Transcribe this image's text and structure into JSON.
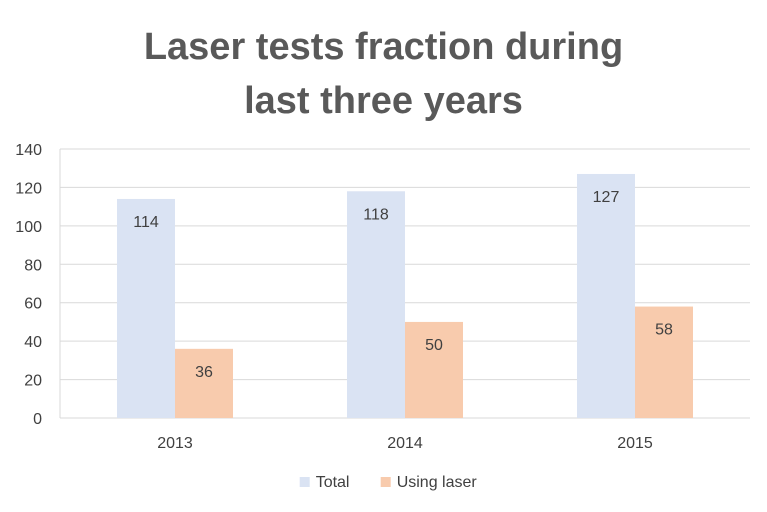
{
  "chart_data": {
    "type": "bar",
    "title_lines": [
      "Laser tests fraction during",
      "last three years"
    ],
    "categories": [
      "2013",
      "2014",
      "2015"
    ],
    "series": [
      {
        "name": "Total",
        "values": [
          114,
          118,
          127
        ],
        "color": "#dae3f3"
      },
      {
        "name": "Using laser",
        "values": [
          36,
          50,
          58
        ],
        "color": "#f8cbad"
      }
    ],
    "ylim": [
      0,
      140
    ],
    "yticks": [
      0,
      20,
      40,
      60,
      80,
      100,
      120,
      140
    ],
    "grid": true,
    "legend_position": "bottom",
    "data_labels": true
  }
}
